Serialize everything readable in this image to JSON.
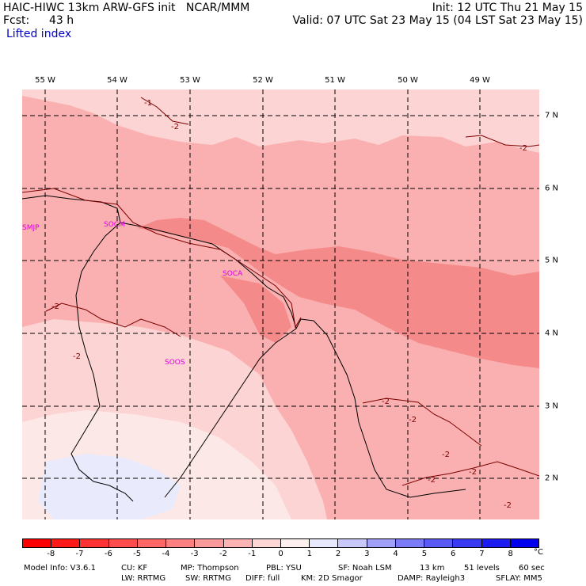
{
  "header": {
    "model_line": "HAIC-HIWC 13km ARW-GFS init   NCAR/MMM",
    "init": "Init: 12 UTC Thu 21 May 15",
    "fcst_label": "Fcst:",
    "fcst_value": "43 h",
    "valid": "Valid: 07 UTC Sat 23 May 15 (04 LST Sat 23 May 15)",
    "field_name": "Lifted index"
  },
  "axes": {
    "longitudes": [
      "55 W",
      "54 W",
      "53 W",
      "52 W",
      "51 W",
      "50 W",
      "49 W"
    ],
    "latitudes": [
      "7 N",
      "6 N",
      "5 N",
      "4 N",
      "3 N",
      "2 N"
    ]
  },
  "stations": [
    "SMJP",
    "SOCM",
    "SOCA",
    "SOOS"
  ],
  "contour_labels": [
    "-1",
    "-2",
    "-2",
    "-2",
    "-2",
    "-2",
    "-2",
    "-2",
    "-2",
    "-2",
    "-2"
  ],
  "colorbar": {
    "ticks": [
      "-8",
      "-7",
      "-6",
      "-5",
      "-4",
      "-3",
      "-2",
      "-1",
      "0",
      "1",
      "2",
      "3",
      "4",
      "5",
      "6",
      "7",
      "8"
    ],
    "unit": "°C",
    "colors": [
      "#ff0000",
      "#ff1a1a",
      "#ff3333",
      "#ff4d4d",
      "#ff6666",
      "#ff8080",
      "#fb9a9a",
      "#fbb3b3",
      "#fdd6d6",
      "#fff0f0",
      "#e8e8fd",
      "#c8c8fb",
      "#a0a0fa",
      "#7b7bf8",
      "#5a5af5",
      "#3a3af3",
      "#1c1cf0",
      "#0000ee"
    ]
  },
  "footer": {
    "line1": [
      "Model Info: V3.6.1",
      "CU: KF",
      "MP: Thompson",
      "PBL: YSU",
      "SF: Noah LSM",
      "13 km",
      "51 levels",
      "60 sec"
    ],
    "line2": [
      "LW: RRTMG",
      "SW: RRTMG",
      "DIFF: full",
      "KM: 2D Smagor",
      "DAMP: Rayleigh3",
      "SFLAY: MM5"
    ]
  }
}
